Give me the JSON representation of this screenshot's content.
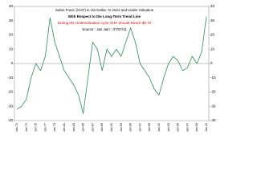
{
  "chart_data": {
    "type": "line",
    "title": "Swiss Franc (CHF) in US Dollar, % Over and Under Valuation",
    "subtitle": "With Respect to the Long-Term Trend Line",
    "annotations": [
      "During the Undervaluation cycle CHF Should Reach $0.70",
      "Source : Jas Jain : 07/07/11"
    ],
    "annotation_color": "#e00000",
    "categories": [
      "Jan-71",
      null,
      "Jan-73",
      null,
      "Jan-75",
      null,
      "Jan-77",
      null,
      "Jan-79",
      null,
      "Jan-81",
      null,
      "Jan-83",
      null,
      "Jan-85",
      null,
      "Jan-87",
      null,
      "Jan-89",
      null,
      "Jan-91",
      null,
      "Jan-93",
      null,
      "Jan-95",
      null,
      "Jan-97",
      null,
      "Jan-99",
      null,
      "Jan-01",
      null,
      "Jan-03",
      null,
      "Jan-05",
      null,
      "Jan-07",
      null,
      "Jan-09",
      null,
      "Jan-11"
    ],
    "series": [
      {
        "color": "#2e8b57",
        "values": [
          -32,
          -30,
          -25,
          -10,
          0,
          -5,
          5,
          32,
          15,
          5,
          -5,
          -10,
          -15,
          -22,
          -35,
          -10,
          15,
          10,
          -5,
          10,
          5,
          10,
          5,
          15,
          25,
          15,
          0,
          -5,
          -10,
          -18,
          -22,
          -10,
          0,
          5,
          2,
          -5,
          -3,
          5,
          0,
          8,
          33
        ]
      }
    ],
    "ylim": [
      -40,
      40
    ],
    "yticks": [
      -40,
      -30,
      -20,
      -10,
      0,
      10,
      20,
      30,
      40
    ],
    "y2lim": [
      -40,
      40
    ],
    "y2ticks": [
      -40,
      -30,
      -20,
      -10,
      0,
      10,
      20,
      30,
      40
    ],
    "zero_line": true
  }
}
